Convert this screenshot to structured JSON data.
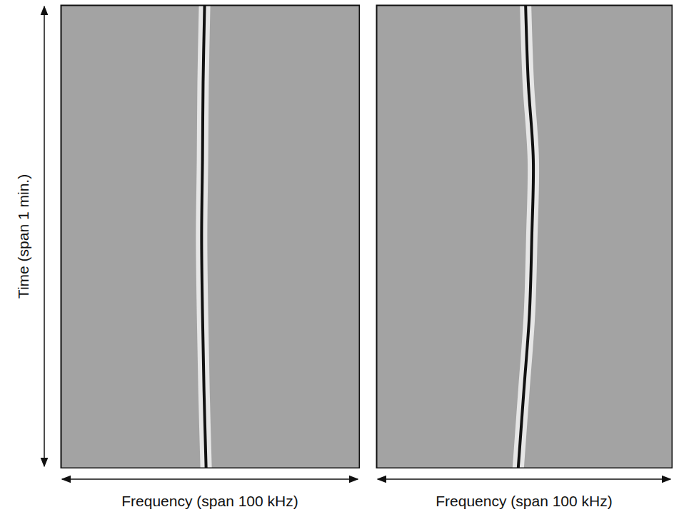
{
  "chart_data": [
    {
      "type": "line",
      "y_label": "Time (span 1 min.)",
      "x_label": "Frequency (span 100 kHz)",
      "xlim": [
        0,
        100
      ],
      "ylim": [
        0,
        60
      ],
      "tick_labels": false,
      "y": [
        0,
        10,
        20,
        30,
        40,
        50,
        60
      ],
      "series": [
        {
          "color": "#111111",
          "values": [
            48.1,
            47.6,
            47.4,
            47.1,
            47.4,
            47.9,
            48.6
          ]
        }
      ]
    },
    {
      "type": "line",
      "x_label": "Frequency (span 100 kHz)",
      "xlim": [
        0,
        100
      ],
      "ylim": [
        0,
        60
      ],
      "tick_labels": false,
      "y": [
        0,
        10,
        20,
        30,
        40,
        50,
        60
      ],
      "series": [
        {
          "color": "#111111",
          "values": [
            50.4,
            51.3,
            53.0,
            52.5,
            51.7,
            49.8,
            47.9
          ]
        }
      ]
    }
  ]
}
